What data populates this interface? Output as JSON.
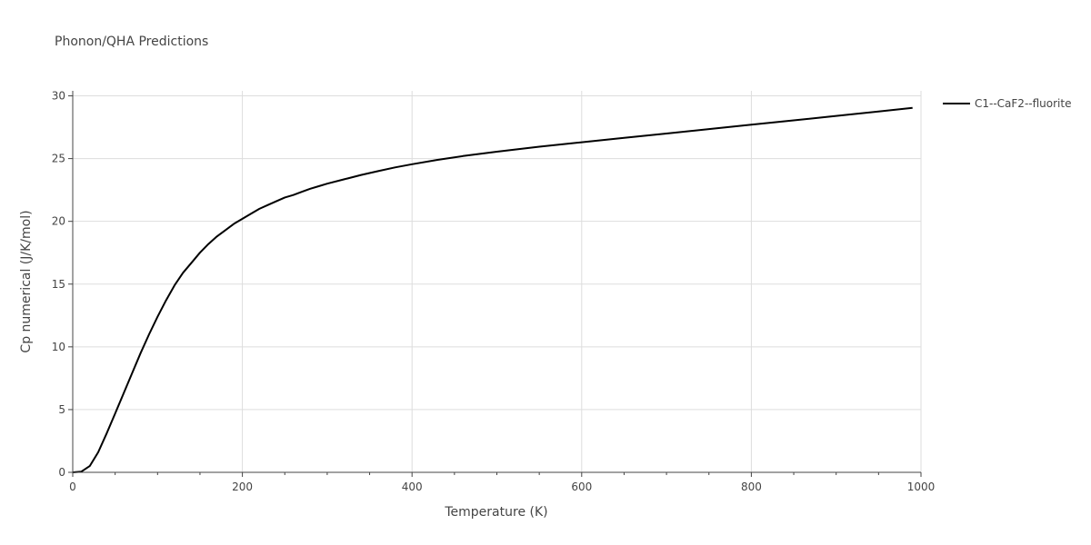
{
  "chart_data": {
    "type": "line",
    "title": "Phonon/QHA Predictions",
    "xlabel": "Temperature (K)",
    "ylabel": "Cp numerical (J/K/mol)",
    "xlim": [
      0,
      1000
    ],
    "ylim": [
      0,
      30.4
    ],
    "xticks": [
      0,
      200,
      400,
      600,
      800,
      1000
    ],
    "xtick_labels": [
      "0",
      "200",
      "400",
      "600",
      "800",
      "1000"
    ],
    "yticks": [
      0,
      5,
      10,
      15,
      20,
      25,
      30
    ],
    "ytick_labels": [
      "0",
      "5",
      "10",
      "15",
      "20",
      "25",
      "30"
    ],
    "grid": true,
    "legend_position": "top-right",
    "series": [
      {
        "name": "C1--CaF2--fluorite",
        "color": "#000000",
        "x": [
          0,
          10,
          20,
          30,
          40,
          50,
          60,
          70,
          80,
          90,
          100,
          110,
          120,
          130,
          140,
          150,
          160,
          170,
          180,
          190,
          200,
          210,
          220,
          230,
          240,
          250,
          260,
          270,
          280,
          290,
          300,
          320,
          340,
          360,
          380,
          400,
          430,
          460,
          500,
          550,
          600,
          650,
          700,
          750,
          800,
          850,
          900,
          950,
          990
        ],
        "y": [
          0,
          0.05,
          0.5,
          1.6,
          3.1,
          4.7,
          6.3,
          7.9,
          9.5,
          11.0,
          12.4,
          13.7,
          14.9,
          15.9,
          16.7,
          17.5,
          18.2,
          18.8,
          19.3,
          19.8,
          20.2,
          20.6,
          21.0,
          21.3,
          21.6,
          21.9,
          22.1,
          22.35,
          22.6,
          22.8,
          23.0,
          23.35,
          23.7,
          24.0,
          24.3,
          24.55,
          24.9,
          25.2,
          25.55,
          25.95,
          26.3,
          26.65,
          27.0,
          27.35,
          27.7,
          28.05,
          28.4,
          28.75,
          29.05
        ]
      }
    ]
  }
}
